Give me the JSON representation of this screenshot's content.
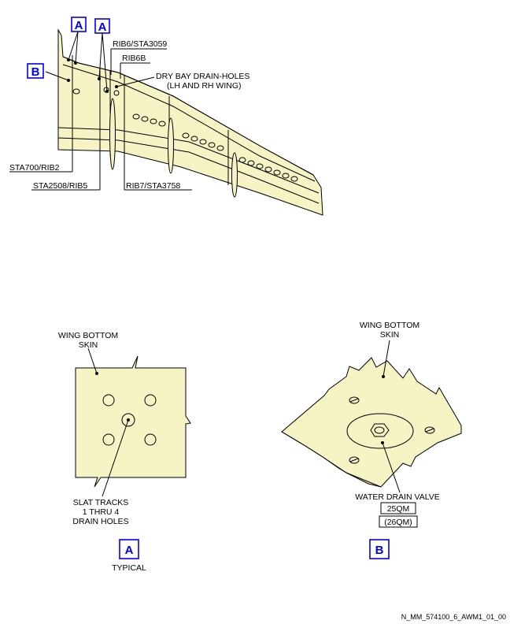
{
  "top_view": {
    "callouts": {
      "a_left": "A",
      "a_right": "A",
      "b": "B"
    },
    "labels": {
      "rib6_sta3059": "RIB6/STA3059",
      "rib6b": "RIB6B",
      "dry_bay_line1": "DRY BAY DRAIN-HOLES",
      "dry_bay_line2": "(LH AND RH WING)",
      "sta700_rib2": "STA700/RIB2",
      "sta2508_rib5": "STA2508/RIB5",
      "rib7_sta3758": "RIB7/STA3758"
    }
  },
  "detail_a": {
    "skin_line1": "WING BOTTOM",
    "skin_line2": "SKIN",
    "drain_line1": "SLAT TRACKS",
    "drain_line2": "1 THRU 4",
    "drain_line3": "DRAIN HOLES",
    "callout": "A",
    "typical": "TYPICAL"
  },
  "detail_b": {
    "skin_line1": "WING BOTTOM",
    "skin_line2": "SKIN",
    "valve_label": "WATER DRAIN VALVE",
    "code_1": "25QM",
    "code_2": "(26QM)",
    "callout": "B"
  },
  "footer": {
    "figure_id": "N_MM_574100_6_AWM1_01_00"
  },
  "colors": {
    "skin_fill": "#f6f4c4",
    "callout_blue": "#0000ee",
    "line": "#000000"
  }
}
